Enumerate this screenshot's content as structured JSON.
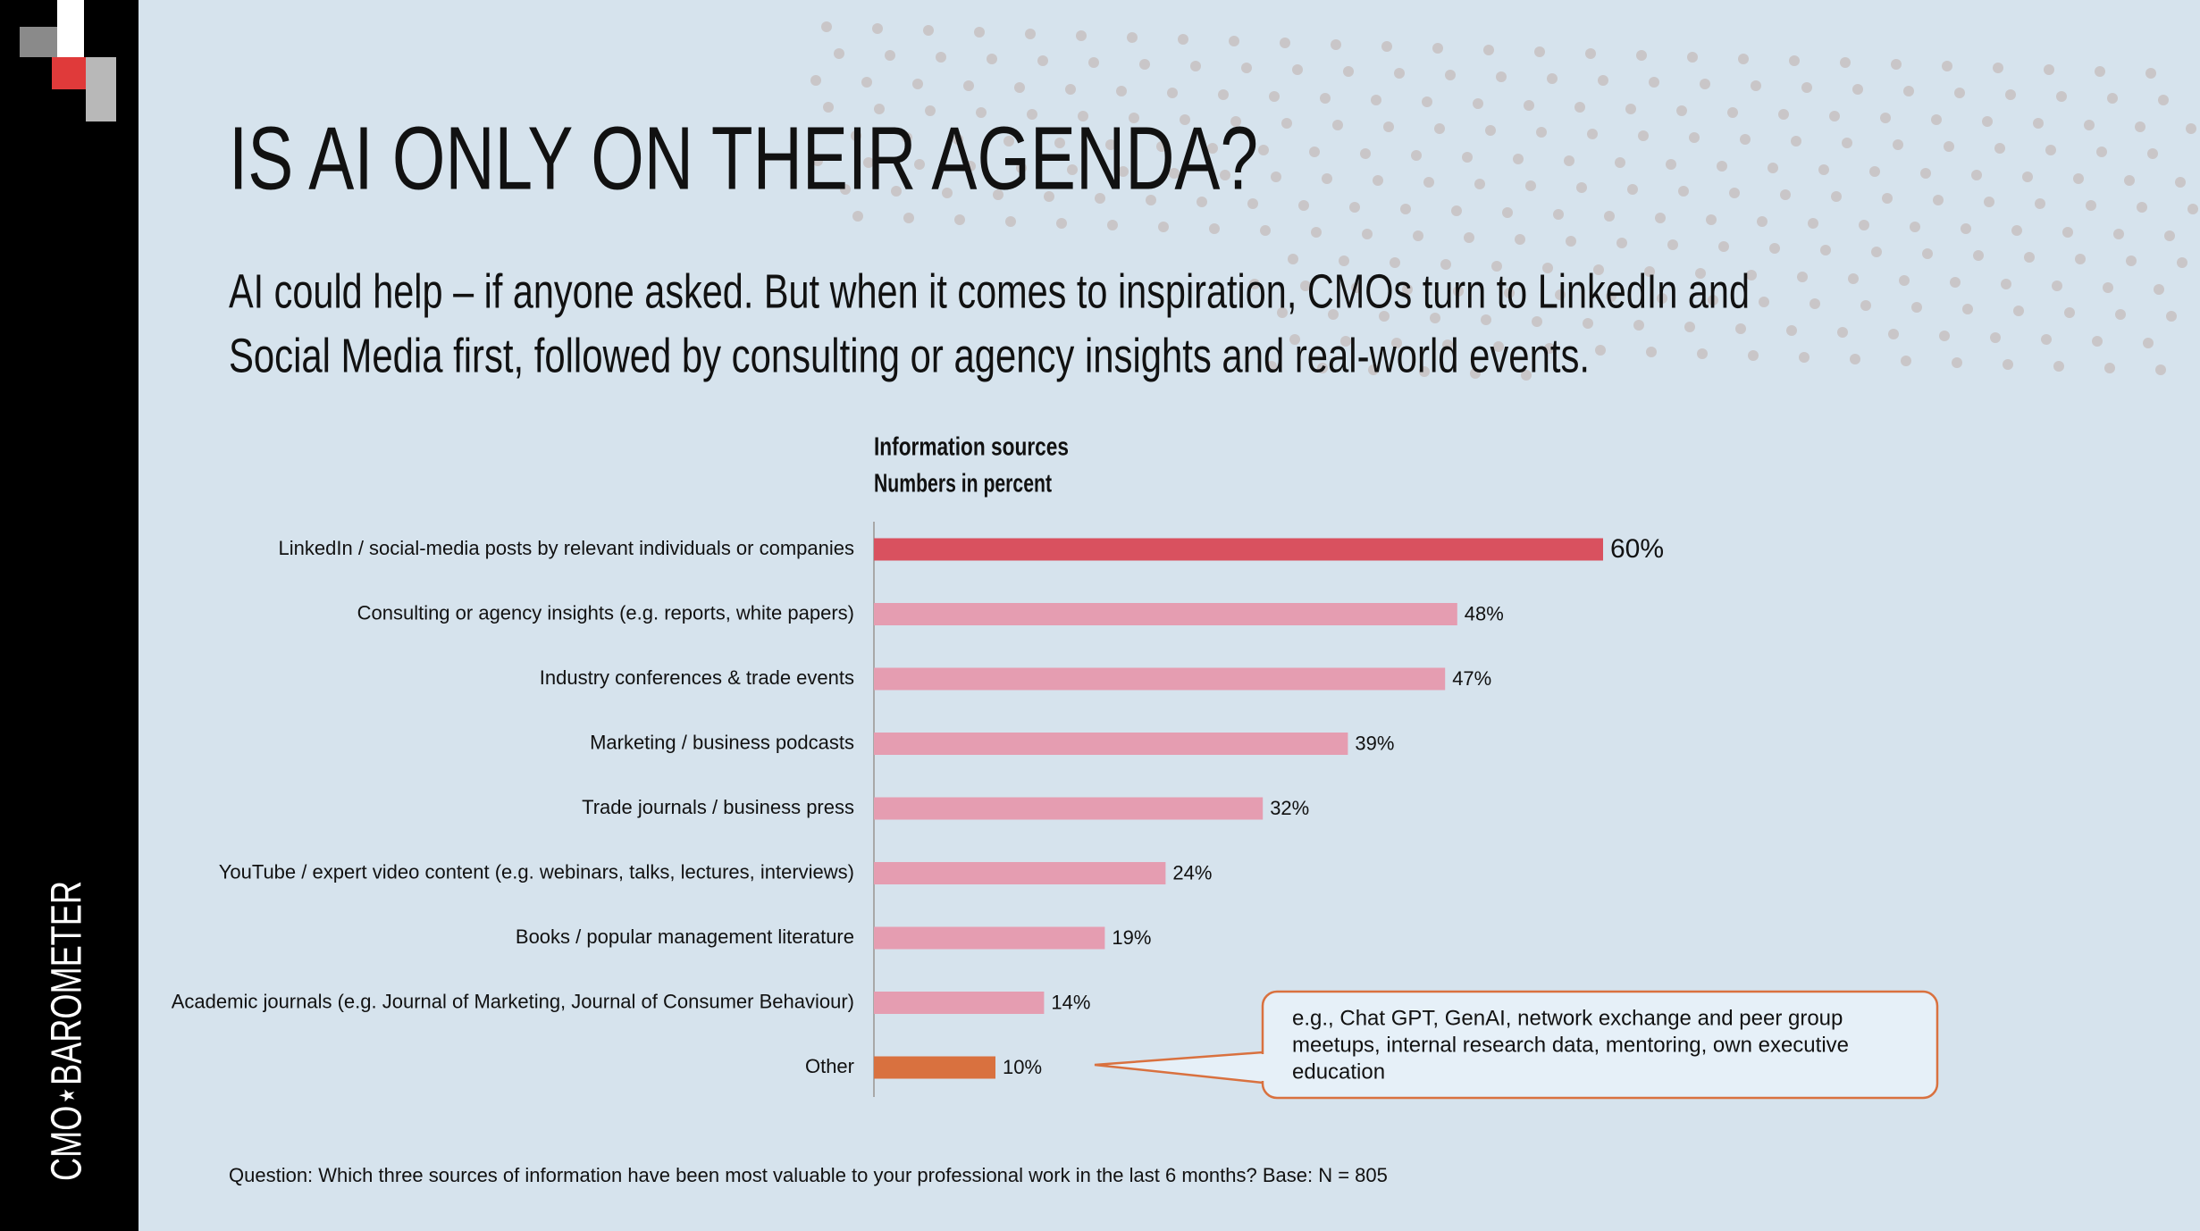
{
  "brand": "CMO⋆BAROMETER",
  "chart_data": {
    "type": "bar",
    "orientation": "horizontal",
    "title": "IS AI ONLY ON THEIR AGENDA?",
    "subtitle": [
      "AI could help – if anyone asked. But when it comes to inspiration, CMOs turn to LinkedIn and",
      "Social Media first, followed by consulting or agency insights and real-world events."
    ],
    "chart_title": "Information sources",
    "chart_subtitle": "Numbers in percent",
    "categories": [
      "LinkedIn / social-media posts by relevant individuals or companies",
      "Consulting or agency insights (e.g. reports, white papers)",
      "Industry conferences & trade events",
      "Marketing / business podcasts",
      "Trade journals / business press",
      "YouTube / expert video content (e.g. webinars, talks, lectures, interviews)",
      "Books / popular management literature",
      "Academic journals (e.g. Journal of Marketing, Journal of Consumer Behaviour)",
      "Other"
    ],
    "values": [
      60,
      48,
      47,
      39,
      32,
      24,
      19,
      14,
      10
    ],
    "value_labels": [
      "60%",
      "48%",
      "47%",
      "39%",
      "32%",
      "24%",
      "19%",
      "14%",
      "10%"
    ],
    "colors": [
      "#d9515f",
      "#e59db1",
      "#e59db1",
      "#e59db1",
      "#e59db1",
      "#e59db1",
      "#e59db1",
      "#e59db1",
      "#d9713f"
    ],
    "xlim": [
      0,
      100
    ],
    "annotation": [
      "e.g., Chat GPT, GenAI, network exchange and peer group",
      "meetups, internal research data,  mentoring, own  executive",
      "education"
    ],
    "footnote": "Question: Which three sources of information have been most valuable to your professional work in the last 6 months? Base: N = 805"
  }
}
